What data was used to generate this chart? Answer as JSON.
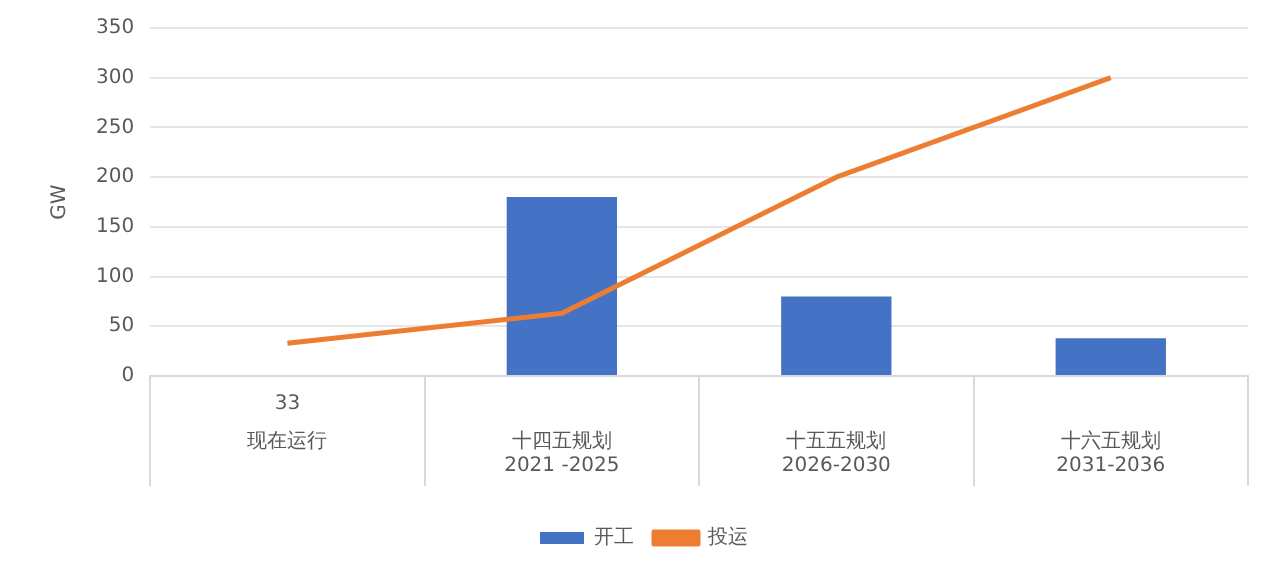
{
  "chart_data": {
    "type": "bar",
    "ylabel": "GW",
    "categories": [
      "现在运行",
      "十四五规划\n2021 -2025",
      "十五五规划\n2026-2030",
      "十六五规划\n2031-2036"
    ],
    "series": [
      {
        "name": "开工",
        "color": "#4472c4",
        "values": [
          null,
          180,
          80,
          38
        ]
      },
      {
        "name": "投运",
        "type": "line",
        "color": "#ed7d31",
        "values": [
          33,
          63,
          200,
          300
        ]
      }
    ],
    "ylim": [
      0,
      350
    ],
    "yticks": [
      0,
      50,
      100,
      150,
      200,
      250,
      300,
      350
    ],
    "grid": "y",
    "legend": "bottom",
    "marker": "none",
    "annotations": [
      "33"
    ]
  }
}
